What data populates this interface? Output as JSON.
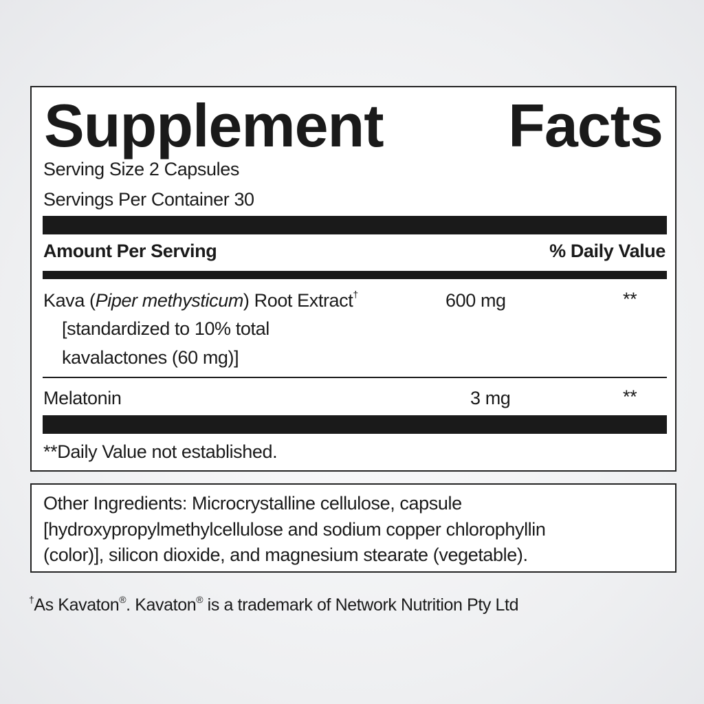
{
  "title": {
    "word1": "Supplement",
    "word2": "Facts"
  },
  "serving_size": "Serving Size 2 Capsules",
  "servings_per_container": "Servings Per Container 30",
  "header": {
    "amount": "Amount Per Serving",
    "dv": "% Daily Value"
  },
  "rows": [
    {
      "name_prefix": "Kava (",
      "name_italic": "Piper methysticum",
      "name_suffix": ") Root Extract",
      "mark": "†",
      "detail1": "[standardized to 10% total",
      "detail2": "kavalactones (60 mg)]",
      "amount": "600 mg",
      "dv": "**"
    },
    {
      "name": "Melatonin",
      "amount": "3 mg",
      "dv": "**"
    }
  ],
  "dv_note": "**Daily Value not established.",
  "other_ingredients": [
    "Other Ingredients: Microcrystalline cellulose, capsule",
    "[hydroxypropylmethylcellulose and sodium copper chlorophyllin",
    "(color)], silicon dioxide, and magnesium stearate (vegetable)."
  ],
  "footer": {
    "dagger": "†",
    "p1": "As Kavaton",
    "reg": "®",
    "p2": ". Kavaton",
    "p3": " is a trademark of Network Nutrition Pty Ltd"
  }
}
